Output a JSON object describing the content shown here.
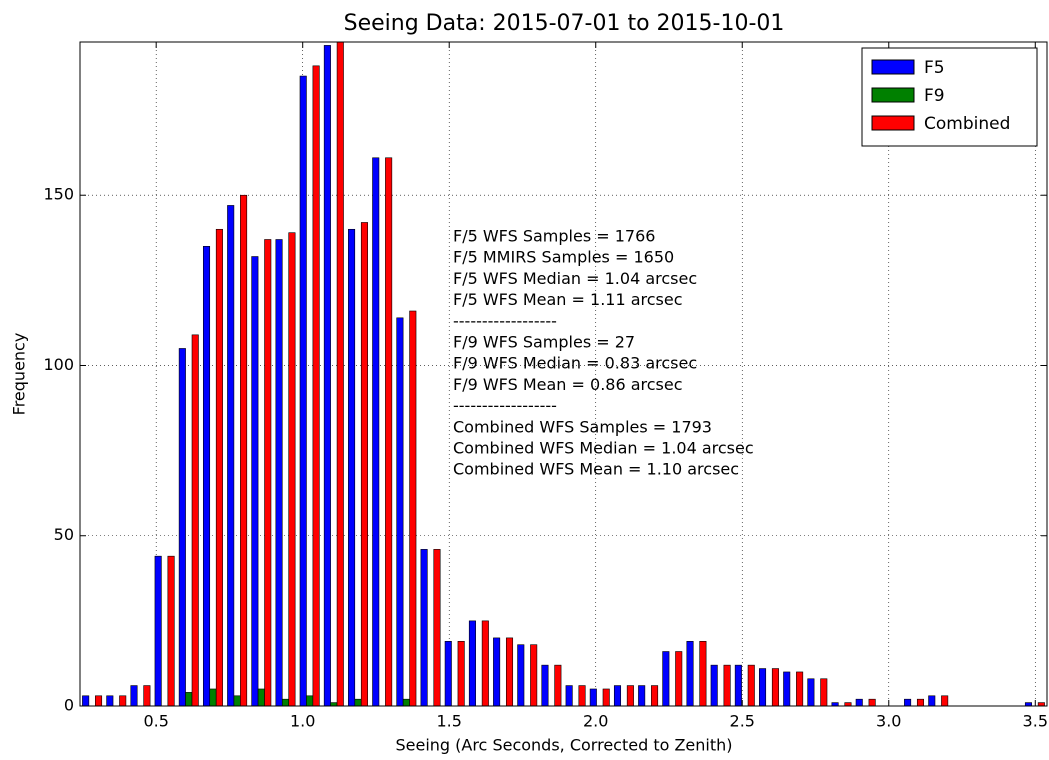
{
  "chart_data": {
    "type": "histogram",
    "title": "Seeing Data: 2015-07-01 to 2015-10-01",
    "x_label": "Seeing (Arc Seconds, Corrected to Zenith)",
    "y_label": "Frequency",
    "bins": [
      0.24,
      0.3225,
      0.405,
      0.4875,
      0.57,
      0.6525,
      0.735,
      0.8175,
      0.9,
      0.9825,
      1.065,
      1.1475,
      1.23,
      1.3125,
      1.395,
      1.4775,
      1.56,
      1.6425,
      1.725,
      1.8075,
      1.89,
      1.9725,
      2.055,
      2.1375,
      2.22,
      2.3025,
      2.385,
      2.4675,
      2.55,
      2.6325,
      2.715,
      2.7975,
      2.88,
      2.9625,
      3.045,
      3.1275,
      3.21,
      3.2925,
      3.375,
      3.4575,
      3.54
    ],
    "series": [
      {
        "name": "F5",
        "color": "#0000ff",
        "values": [
          3,
          3,
          6,
          44,
          105,
          135,
          147,
          132,
          137,
          185,
          194,
          140,
          161,
          114,
          46,
          19,
          25,
          20,
          18,
          12,
          6,
          5,
          6,
          6,
          16,
          19,
          12,
          12,
          11,
          10,
          8,
          1,
          2,
          0,
          2,
          3,
          0,
          0,
          0,
          1
        ]
      },
      {
        "name": "F9",
        "color": "#008000",
        "values": [
          0,
          0,
          0,
          0,
          4,
          5,
          3,
          5,
          2,
          3,
          1,
          2,
          0,
          2,
          0,
          0,
          0,
          0,
          0,
          0,
          0,
          0,
          0,
          0,
          0,
          0,
          0,
          0,
          0,
          0,
          0,
          0,
          0,
          0,
          0,
          0,
          0,
          0,
          0,
          0
        ]
      },
      {
        "name": "Combined",
        "color": "#ff0000",
        "values": [
          3,
          3,
          6,
          44,
          109,
          140,
          150,
          137,
          139,
          188,
          195,
          142,
          161,
          116,
          46,
          19,
          25,
          20,
          18,
          12,
          6,
          5,
          6,
          6,
          16,
          19,
          12,
          12,
          11,
          10,
          8,
          1,
          2,
          0,
          2,
          3,
          0,
          0,
          0,
          1
        ]
      }
    ],
    "xlim": [
      0.24,
      3.54
    ],
    "ylim": [
      0,
      195
    ],
    "xticks": [
      0.5,
      {
        "value": 1,
        "label": "1.0"
      },
      1.5,
      {
        "value": 2,
        "label": "2.0"
      },
      2.5,
      {
        "value": 3,
        "label": "3.0"
      },
      3.5
    ],
    "yticks": [
      0,
      50,
      100,
      150
    ],
    "grid": true,
    "legend": "upper right",
    "annotation": [
      "F/5 WFS Samples = 1766",
      "F/5 MMIRS Samples = 1650",
      "F/5 WFS Median =  1.04 arcsec",
      "F/5 WFS Mean =  1.11 arcsec",
      "------------------",
      "F/9 WFS Samples = 27",
      "F/9 WFS Median =  0.83 arcsec",
      "F/9 WFS Mean =  0.86 arcsec",
      "------------------",
      "Combined WFS Samples = 1793",
      "Combined WFS Median =  1.04 arcsec",
      "Combined WFS Mean =  1.10 arcsec"
    ]
  }
}
